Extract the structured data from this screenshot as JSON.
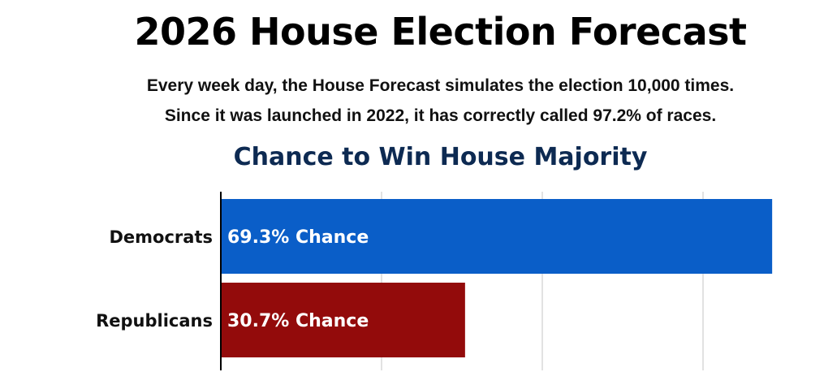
{
  "header": {
    "title": "2026 House Election Forecast",
    "subtitle_line1": "Every week day, the House Forecast simulates the election 10,000 times.",
    "subtitle_line2": "Since it was launched in 2022, it has correctly called 97.2% of races."
  },
  "chart_data": {
    "type": "bar",
    "orientation": "horizontal",
    "title": "Chance to Win House Majority",
    "categories": [
      "Democrats",
      "Republicans"
    ],
    "values": [
      69.3,
      30.7
    ],
    "data_labels": [
      "69.3% Chance",
      "30.7% Chance"
    ],
    "colors": [
      "#0a5ec8",
      "#930b0b"
    ],
    "xlim": [
      0,
      70
    ],
    "grid": true,
    "unit": "%"
  }
}
